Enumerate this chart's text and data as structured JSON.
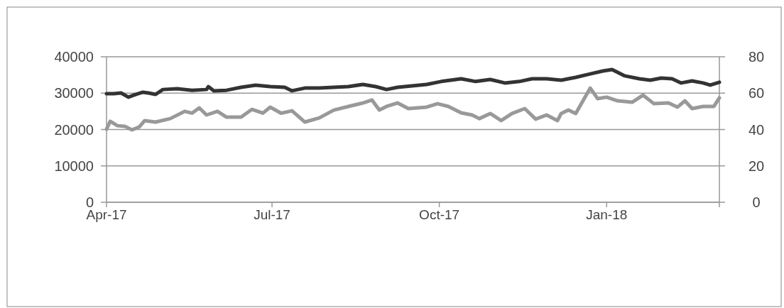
{
  "chart_data": {
    "type": "line",
    "xlim": [
      "2017-04-01",
      "2018-03-04"
    ],
    "xticks": [
      {
        "value": "2017-04-01",
        "label": "Apr-17"
      },
      {
        "value": "2017-07-01",
        "label": "Jul-17"
      },
      {
        "value": "2017-10-01",
        "label": "Oct-17"
      },
      {
        "value": "2018-01-01",
        "label": "Jan-18"
      },
      {
        "value": "2018-03-04",
        "label": null
      }
    ],
    "ylim": [
      0,
      40000
    ],
    "yticks": [
      0,
      10000,
      20000,
      30000,
      40000
    ],
    "y2lim": [
      0,
      80
    ],
    "y2ticks": [
      0,
      20,
      40,
      60,
      80
    ],
    "grid": "y",
    "legend": false,
    "series": [
      {
        "color": "#333333",
        "x": [
          "2017-04-01",
          "2017-04-05",
          "2017-04-09",
          "2017-04-13",
          "2017-04-17",
          "2017-04-21",
          "2017-04-24",
          "2017-04-28",
          "2017-05-02",
          "2017-05-10",
          "2017-05-18",
          "2017-05-26",
          "2017-05-27",
          "2017-05-30",
          "2017-06-06",
          "2017-06-14",
          "2017-06-22",
          "2017-06-30",
          "2017-07-08",
          "2017-07-12",
          "2017-07-19",
          "2017-07-27",
          "2017-08-04",
          "2017-08-12",
          "2017-08-20",
          "2017-08-27",
          "2017-09-02",
          "2017-09-08",
          "2017-09-16",
          "2017-09-24",
          "2017-10-02",
          "2017-10-13",
          "2017-10-21",
          "2017-10-29",
          "2017-11-06",
          "2017-11-14",
          "2017-11-21",
          "2017-11-29",
          "2017-12-07",
          "2017-12-15",
          "2017-12-23",
          "2017-12-30",
          "2018-01-04",
          "2018-01-11",
          "2018-01-19",
          "2018-01-25",
          "2018-01-31",
          "2018-02-06",
          "2018-02-11",
          "2018-02-17",
          "2018-02-23",
          "2018-02-27",
          "2018-03-04"
        ],
        "values": [
          29850,
          29850,
          30050,
          28900,
          29650,
          30250,
          30050,
          29650,
          31000,
          31200,
          30800,
          31000,
          31800,
          30650,
          30800,
          31600,
          32200,
          31800,
          31600,
          30650,
          31400,
          31400,
          31600,
          31800,
          32400,
          31800,
          31000,
          31600,
          32000,
          32400,
          33200,
          33950,
          33200,
          33750,
          32800,
          33200,
          33950,
          33950,
          33550,
          34350,
          35300,
          36100,
          36500,
          34750,
          33950,
          33550,
          34150,
          33950,
          32800,
          33350,
          32800,
          32200,
          33000
        ]
      },
      {
        "color": "#999999",
        "axis": "y2",
        "x": [
          "2017-04-01",
          "2017-04-03",
          "2017-04-07",
          "2017-04-11",
          "2017-04-15",
          "2017-04-19",
          "2017-04-22",
          "2017-04-28",
          "2017-05-06",
          "2017-05-14",
          "2017-05-18",
          "2017-05-22",
          "2017-05-26",
          "2017-06-01",
          "2017-06-06",
          "2017-06-14",
          "2017-06-20",
          "2017-06-26",
          "2017-06-30",
          "2017-07-06",
          "2017-07-12",
          "2017-07-19",
          "2017-07-27",
          "2017-08-04",
          "2017-08-12",
          "2017-08-20",
          "2017-08-25",
          "2017-08-29",
          "2017-09-02",
          "2017-09-08",
          "2017-09-14",
          "2017-09-24",
          "2017-09-30",
          "2017-10-06",
          "2017-10-13",
          "2017-10-19",
          "2017-10-23",
          "2017-10-29",
          "2017-11-04",
          "2017-11-10",
          "2017-11-17",
          "2017-11-23",
          "2017-11-29",
          "2017-12-05",
          "2017-12-07",
          "2017-12-11",
          "2017-12-15",
          "2017-12-19",
          "2017-12-23",
          "2017-12-27",
          "2018-01-01",
          "2018-01-07",
          "2018-01-15",
          "2018-01-21",
          "2018-01-27",
          "2018-02-04",
          "2018-02-09",
          "2018-02-13",
          "2018-02-17",
          "2018-02-23",
          "2018-03-01",
          "2018-03-04"
        ],
        "values": [
          40.2,
          44.5,
          42.1,
          41.8,
          39.8,
          41.4,
          44.9,
          44.1,
          46.0,
          50.0,
          49.0,
          51.9,
          48.0,
          50.0,
          46.8,
          46.8,
          51.1,
          49.0,
          52.3,
          49.0,
          50.3,
          44.1,
          46.4,
          50.7,
          52.7,
          54.6,
          56.2,
          50.7,
          52.7,
          54.6,
          51.5,
          52.3,
          54.2,
          52.7,
          49.2,
          48.0,
          46.0,
          48.8,
          44.9,
          48.8,
          51.5,
          45.7,
          48.0,
          44.9,
          48.8,
          50.7,
          48.8,
          55.8,
          62.8,
          57.0,
          57.8,
          55.8,
          55.0,
          58.9,
          54.2,
          54.6,
          52.3,
          55.8,
          51.5,
          52.7,
          52.7,
          57.4
        ]
      }
    ]
  }
}
